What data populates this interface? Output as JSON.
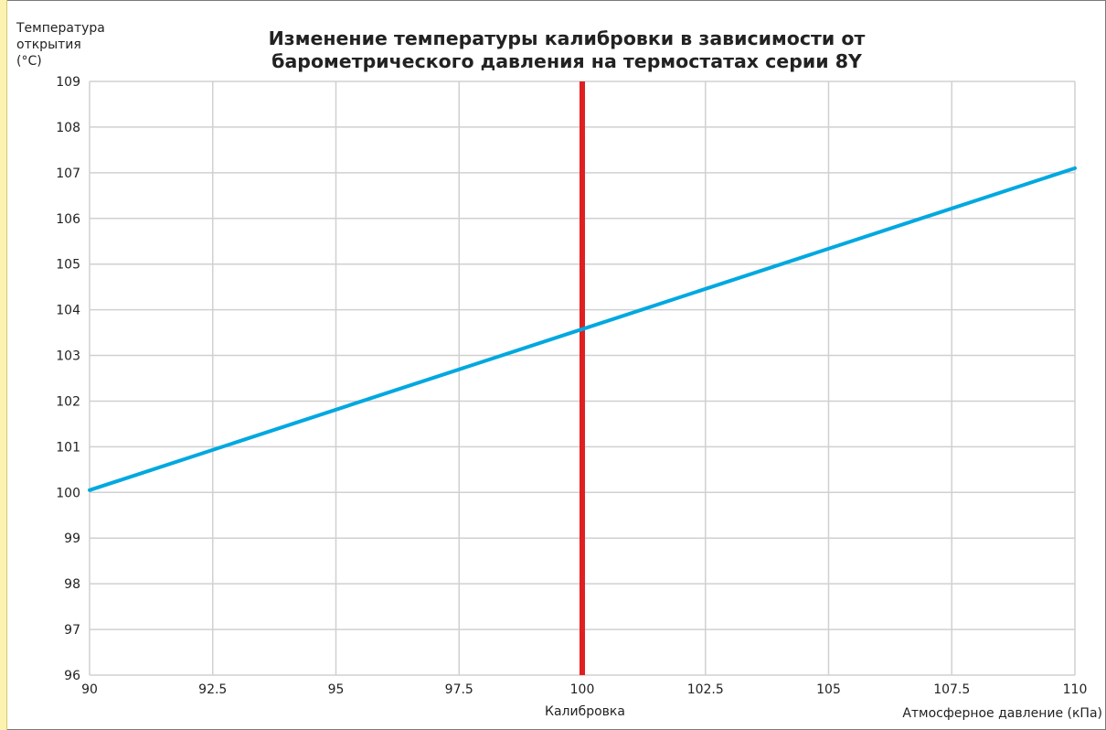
{
  "chart_data": {
    "type": "line",
    "title": "Изменение температуры калибровки в зависимости от барометрического давления на термостатах серии 8Y",
    "ylabel_lines": [
      "Температура",
      "открытия",
      "(°C)"
    ],
    "xlabel": "Атмосферное давление (кПа)",
    "xlim": [
      90,
      110
    ],
    "ylim": [
      96,
      109
    ],
    "x_ticks": [
      "90",
      "92.5",
      "95",
      "97.5",
      "100",
      "102.5",
      "105",
      "107.5",
      "110"
    ],
    "y_ticks": [
      "96",
      "97",
      "98",
      "99",
      "100",
      "101",
      "102",
      "103",
      "104",
      "105",
      "106",
      "107",
      "108",
      "109"
    ],
    "grid": true,
    "series": [
      {
        "color": "#00a8e0",
        "x": [
          90,
          110
        ],
        "y": [
          100.05,
          107.1
        ]
      }
    ],
    "reference_line": {
      "x": 100,
      "label": "Калибровка",
      "color": "#e02020"
    }
  }
}
